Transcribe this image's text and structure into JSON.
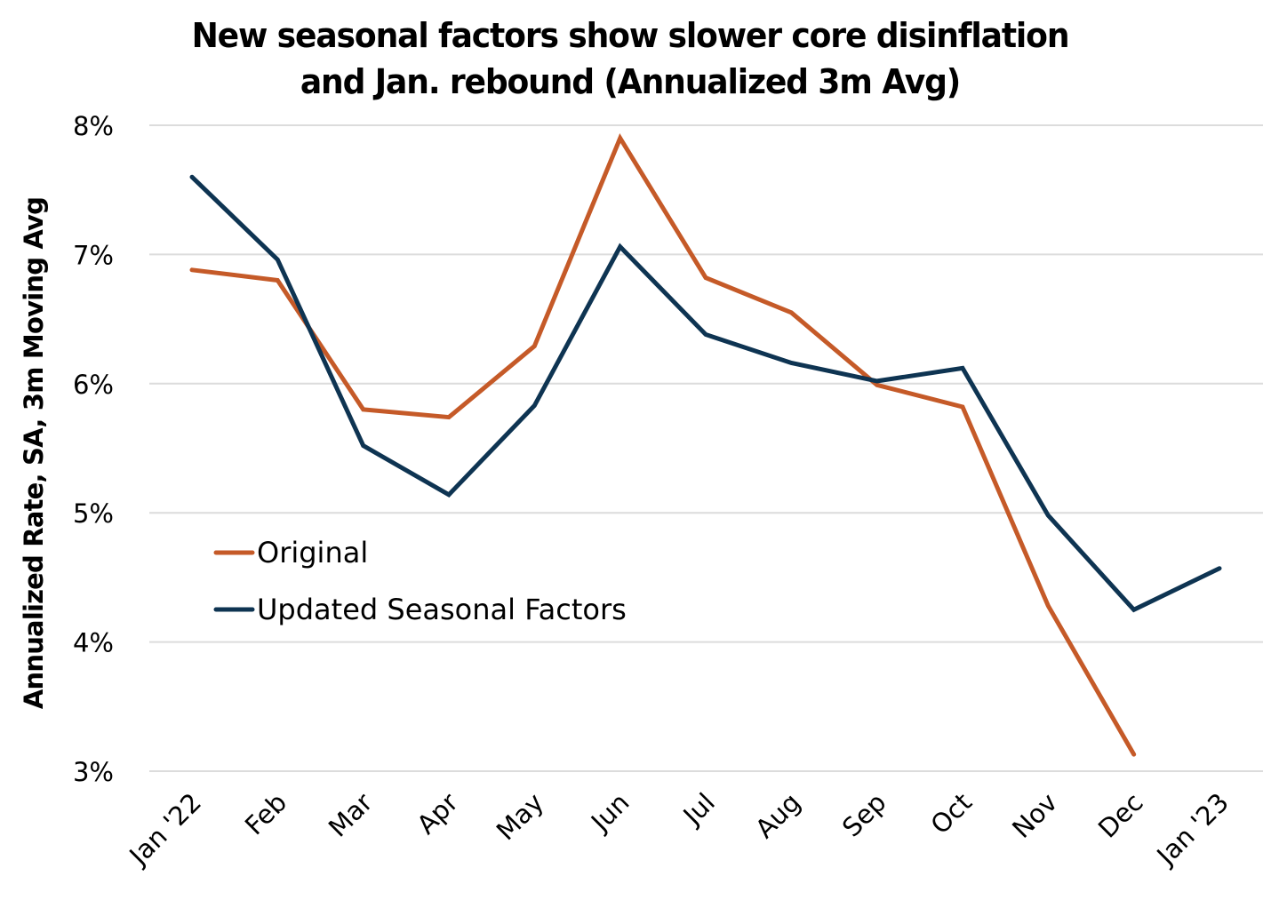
{
  "chart_data": {
    "type": "line",
    "title_lines": [
      "New seasonal factors show slower core disinflation",
      "and Jan. rebound (Annualized 3m Avg)"
    ],
    "xlabel": "",
    "ylabel": "Annualized Rate, SA, 3m Moving Avg",
    "categories": [
      "Jan '22",
      "Feb",
      "Mar",
      "Apr",
      "May",
      "Jun",
      "Jul",
      "Aug",
      "Sep",
      "Oct",
      "Nov",
      "Dec",
      "Jan '23"
    ],
    "ylim": [
      3,
      8
    ],
    "yticks": [
      3,
      4,
      5,
      6,
      7,
      8
    ],
    "ytick_labels": [
      "3%",
      "4%",
      "5%",
      "6%",
      "7%",
      "8%"
    ],
    "grid": "horizontal",
    "legend_position": "center-left",
    "series": [
      {
        "name": "Original",
        "color": "#C55A28",
        "values": [
          6.88,
          6.8,
          5.8,
          5.74,
          6.29,
          7.9,
          6.82,
          6.55,
          5.99,
          5.82,
          4.28,
          3.13,
          null
        ]
      },
      {
        "name": "Updated Seasonal Factors",
        "color": "#0E3452",
        "values": [
          7.6,
          6.96,
          5.52,
          5.14,
          5.83,
          7.06,
          6.38,
          6.16,
          6.02,
          6.12,
          4.98,
          4.25,
          4.57
        ]
      }
    ]
  }
}
